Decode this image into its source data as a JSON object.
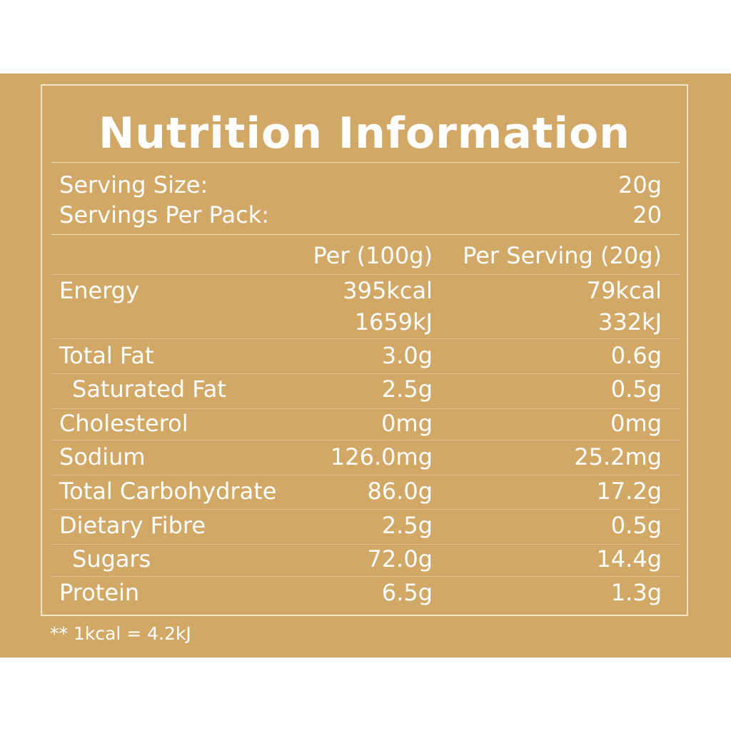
{
  "title": "Nutrition Information",
  "serving": {
    "size_label": "Serving Size:",
    "size_value": "20g",
    "per_pack_label": "Servings Per Pack:",
    "per_pack_value": "20"
  },
  "columns": {
    "per_100g": "Per (100g)",
    "per_serving": "Per Serving (20g)"
  },
  "rows": [
    {
      "label": "Energy",
      "per_100g": "395kcal",
      "per_serving": "79kcal",
      "per_100g_alt": "1659kJ",
      "per_serving_alt": "332kJ"
    },
    {
      "label": "Total Fat",
      "per_100g": "3.0g",
      "per_serving": "0.6g"
    },
    {
      "label": "Saturated Fat",
      "per_100g": "2.5g",
      "per_serving": "0.5g"
    },
    {
      "label": "Cholesterol",
      "per_100g": "0mg",
      "per_serving": "0mg"
    },
    {
      "label": "Sodium",
      "per_100g": "126.0mg",
      "per_serving": "25.2mg"
    },
    {
      "label": "Total Carbohydrate",
      "per_100g": "86.0g",
      "per_serving": "17.2g"
    },
    {
      "label": "Dietary Fibre",
      "per_100g": "2.5g",
      "per_serving": "0.5g"
    },
    {
      "label": "Sugars",
      "per_100g": "72.0g",
      "per_serving": "14.4g"
    },
    {
      "label": "Protein",
      "per_100g": "6.5g",
      "per_serving": "1.3g"
    }
  ],
  "footnote": "** 1kcal = 4.2kJ",
  "colors": {
    "panel": "#d2a866",
    "text": "#ffffff",
    "border": "#f3e6cd"
  }
}
